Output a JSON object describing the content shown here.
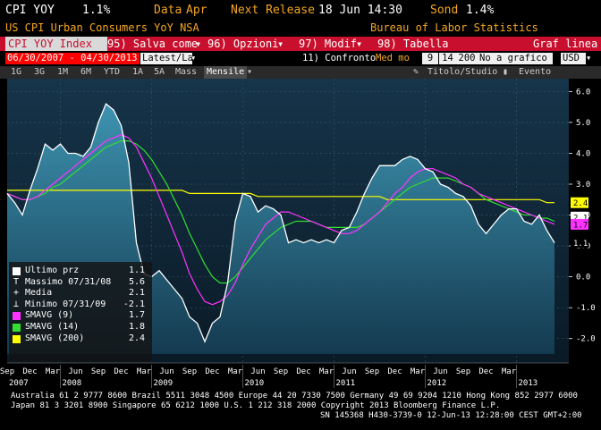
{
  "header": {
    "ticker": "CPI YOY",
    "value": "1.1%",
    "date_label": "Data",
    "date_value": "Apr",
    "next_release_label": "Next Release",
    "next_release_value": "18 Jun 14:30",
    "survey_label": "Sond",
    "survey_value": "1.4%",
    "subtitle": "US CPI Urban Consumers YoY NSA",
    "source": "Bureau of Labor Statistics"
  },
  "toolbar": {
    "index_name": "CPI YOY Index",
    "save_as": "95) Salva come",
    "options": "96) Opzioni",
    "modify": "97) Modif",
    "table": "98) Tabella",
    "chart_line": "Graf linea"
  },
  "controls": {
    "date_range": "06/30/2007 - 04/30/2013",
    "last": "Latest/Las",
    "compare": "11) Confronto",
    "compare_value": "Med mo",
    "n1": "9",
    "n2": "14",
    "n3": "200",
    "no_chart": "No a grafico i",
    "currency": "USD"
  },
  "tabs": {
    "items": [
      "1G",
      "3G",
      "1M",
      "6M",
      "YTD",
      "1A",
      "5A",
      "Mass"
    ],
    "active": "Mensile",
    "title_study": "Titolo/Studio",
    "event": "Evento"
  },
  "chart_data": {
    "type": "area",
    "x_start": "2007-06",
    "x_end": "2013-04",
    "ylim": [
      -2.5,
      6.3
    ],
    "y_ticks": [
      "6.0",
      "5.0",
      "4.0",
      "3.0",
      "2.0",
      "1.0",
      "0.0",
      "-1.0",
      "-2.0"
    ],
    "x_month_labels": [
      "Sep",
      "Dec",
      "Mar",
      "Jun",
      "Sep",
      "Dec",
      "Mar",
      "Jun",
      "Sep",
      "Dec",
      "Mar",
      "Jun",
      "Sep",
      "Dec",
      "Mar",
      "Jun",
      "Sep",
      "Dec",
      "Mar",
      "Jun",
      "Sep",
      "Dec",
      "Mar"
    ],
    "x_year_labels": [
      "2007",
      "2008",
      "2009",
      "2010",
      "2011",
      "2012",
      "2013"
    ],
    "series": [
      {
        "name": "CPI YOY",
        "color": "#ffffff",
        "values": [
          2.7,
          2.4,
          2.0,
          2.8,
          3.5,
          4.3,
          4.1,
          4.3,
          4.0,
          4.0,
          3.9,
          4.2,
          5.0,
          5.6,
          5.4,
          4.9,
          3.7,
          1.1,
          0.1,
          0.0,
          0.2,
          -0.1,
          -0.4,
          -0.7,
          -1.3,
          -1.5,
          -2.1,
          -1.5,
          -1.3,
          -0.2,
          1.8,
          2.7,
          2.6,
          2.1,
          2.3,
          2.2,
          2.0,
          1.1,
          1.2,
          1.1,
          1.2,
          1.1,
          1.2,
          1.1,
          1.5,
          1.6,
          2.1,
          2.7,
          3.2,
          3.6,
          3.6,
          3.6,
          3.8,
          3.9,
          3.8,
          3.5,
          3.4,
          3.0,
          2.9,
          2.7,
          2.6,
          2.3,
          1.7,
          1.4,
          1.7,
          2.0,
          2.2,
          2.2,
          1.8,
          1.7,
          2.0,
          1.5,
          1.1
        ]
      },
      {
        "name": "SMAVG (9)",
        "color": "#ff33ff",
        "values": [
          2.7,
          2.6,
          2.5,
          2.5,
          2.6,
          2.8,
          3.0,
          3.2,
          3.4,
          3.6,
          3.8,
          4.0,
          4.2,
          4.4,
          4.5,
          4.6,
          4.5,
          4.2,
          3.7,
          3.2,
          2.6,
          2.0,
          1.4,
          0.8,
          0.1,
          -0.4,
          -0.8,
          -0.9,
          -0.8,
          -0.6,
          -0.2,
          0.4,
          0.9,
          1.3,
          1.7,
          1.9,
          2.1,
          2.1,
          2.0,
          1.9,
          1.8,
          1.7,
          1.6,
          1.5,
          1.4,
          1.4,
          1.5,
          1.7,
          1.9,
          2.1,
          2.4,
          2.7,
          2.9,
          3.2,
          3.4,
          3.5,
          3.5,
          3.4,
          3.3,
          3.2,
          3.0,
          2.9,
          2.7,
          2.6,
          2.5,
          2.4,
          2.3,
          2.2,
          2.1,
          2.0,
          1.9,
          1.8,
          1.7
        ]
      },
      {
        "name": "SMAVG (14)",
        "color": "#33dd33",
        "values": [
          2.7,
          2.6,
          2.5,
          2.5,
          2.6,
          2.7,
          2.9,
          3.0,
          3.2,
          3.4,
          3.6,
          3.8,
          4.0,
          4.2,
          4.3,
          4.4,
          4.4,
          4.3,
          4.1,
          3.8,
          3.4,
          3.0,
          2.5,
          2.0,
          1.4,
          0.9,
          0.4,
          0.0,
          -0.2,
          -0.2,
          0.0,
          0.3,
          0.6,
          0.9,
          1.2,
          1.4,
          1.6,
          1.7,
          1.8,
          1.8,
          1.8,
          1.7,
          1.6,
          1.6,
          1.6,
          1.6,
          1.6,
          1.7,
          1.9,
          2.1,
          2.3,
          2.5,
          2.7,
          2.9,
          3.0,
          3.1,
          3.2,
          3.2,
          3.2,
          3.1,
          3.0,
          2.9,
          2.7,
          2.5,
          2.4,
          2.3,
          2.2,
          2.1,
          2.0,
          2.0,
          1.9,
          1.9,
          1.8
        ]
      },
      {
        "name": "SMAVG (200)",
        "color": "#ffff00",
        "values": [
          2.8,
          2.8,
          2.8,
          2.8,
          2.8,
          2.8,
          2.8,
          2.8,
          2.8,
          2.8,
          2.8,
          2.8,
          2.8,
          2.8,
          2.8,
          2.8,
          2.8,
          2.8,
          2.8,
          2.8,
          2.8,
          2.8,
          2.8,
          2.8,
          2.7,
          2.7,
          2.7,
          2.7,
          2.7,
          2.7,
          2.7,
          2.7,
          2.7,
          2.6,
          2.6,
          2.6,
          2.6,
          2.6,
          2.6,
          2.6,
          2.6,
          2.6,
          2.6,
          2.6,
          2.6,
          2.6,
          2.6,
          2.6,
          2.6,
          2.6,
          2.5,
          2.5,
          2.5,
          2.5,
          2.5,
          2.5,
          2.5,
          2.5,
          2.5,
          2.5,
          2.5,
          2.5,
          2.5,
          2.5,
          2.5,
          2.5,
          2.5,
          2.5,
          2.5,
          2.5,
          2.5,
          2.4,
          2.4
        ]
      }
    ],
    "end_labels": [
      {
        "text": "2.4",
        "bg": "#ffff00",
        "fg": "#000000",
        "value": 2.4
      },
      {
        "text": "2.1",
        "bg": "#ffffff",
        "fg": "#000000",
        "value": 2.05
      },
      {
        "text": "1.7",
        "bg": "#ff33ff",
        "fg": "#000000",
        "value": 1.7
      },
      {
        "text": "1.1",
        "bg": "#000000",
        "fg": "#ffffff",
        "value": 1.1
      }
    ],
    "legend": [
      {
        "label": "Ultimo prz",
        "value": "1.1",
        "swatch": "#ffffff",
        "marker": "box"
      },
      {
        "label": "Massimo 07/31/08",
        "value": "5.6",
        "swatch": "",
        "marker": "T"
      },
      {
        "label": "Media",
        "value": "2.1",
        "swatch": "",
        "marker": "+"
      },
      {
        "label": "Minimo 07/31/09",
        "value": "-2.1",
        "swatch": "",
        "marker": "⊥"
      },
      {
        "label": "SMAVG (9)",
        "value": "1.7",
        "swatch": "#ff33ff",
        "marker": "box"
      },
      {
        "label": "SMAVG (14)",
        "value": "1.8",
        "swatch": "#33dd33",
        "marker": "box"
      },
      {
        "label": "SMAVG (200)",
        "value": "2.4",
        "swatch": "#ffff00",
        "marker": "box"
      }
    ]
  },
  "footer": {
    "line1": "Australia 61 2 9777 8600 Brazil 5511 3048 4500 Europe 44 20 7330 7500 Germany 49 69 9204 1210 Hong Kong 852 2977 6000",
    "line2": "Japan 81 3 3201 8900        Singapore 65 6212 1000        U.S. 1 212 318 2000        Copyright 2013 Bloomberg Finance L.P.",
    "line3": "SN 145368 H430-3739-0 12-Jun-13 12:28:00 CEST GMT+2:00"
  }
}
